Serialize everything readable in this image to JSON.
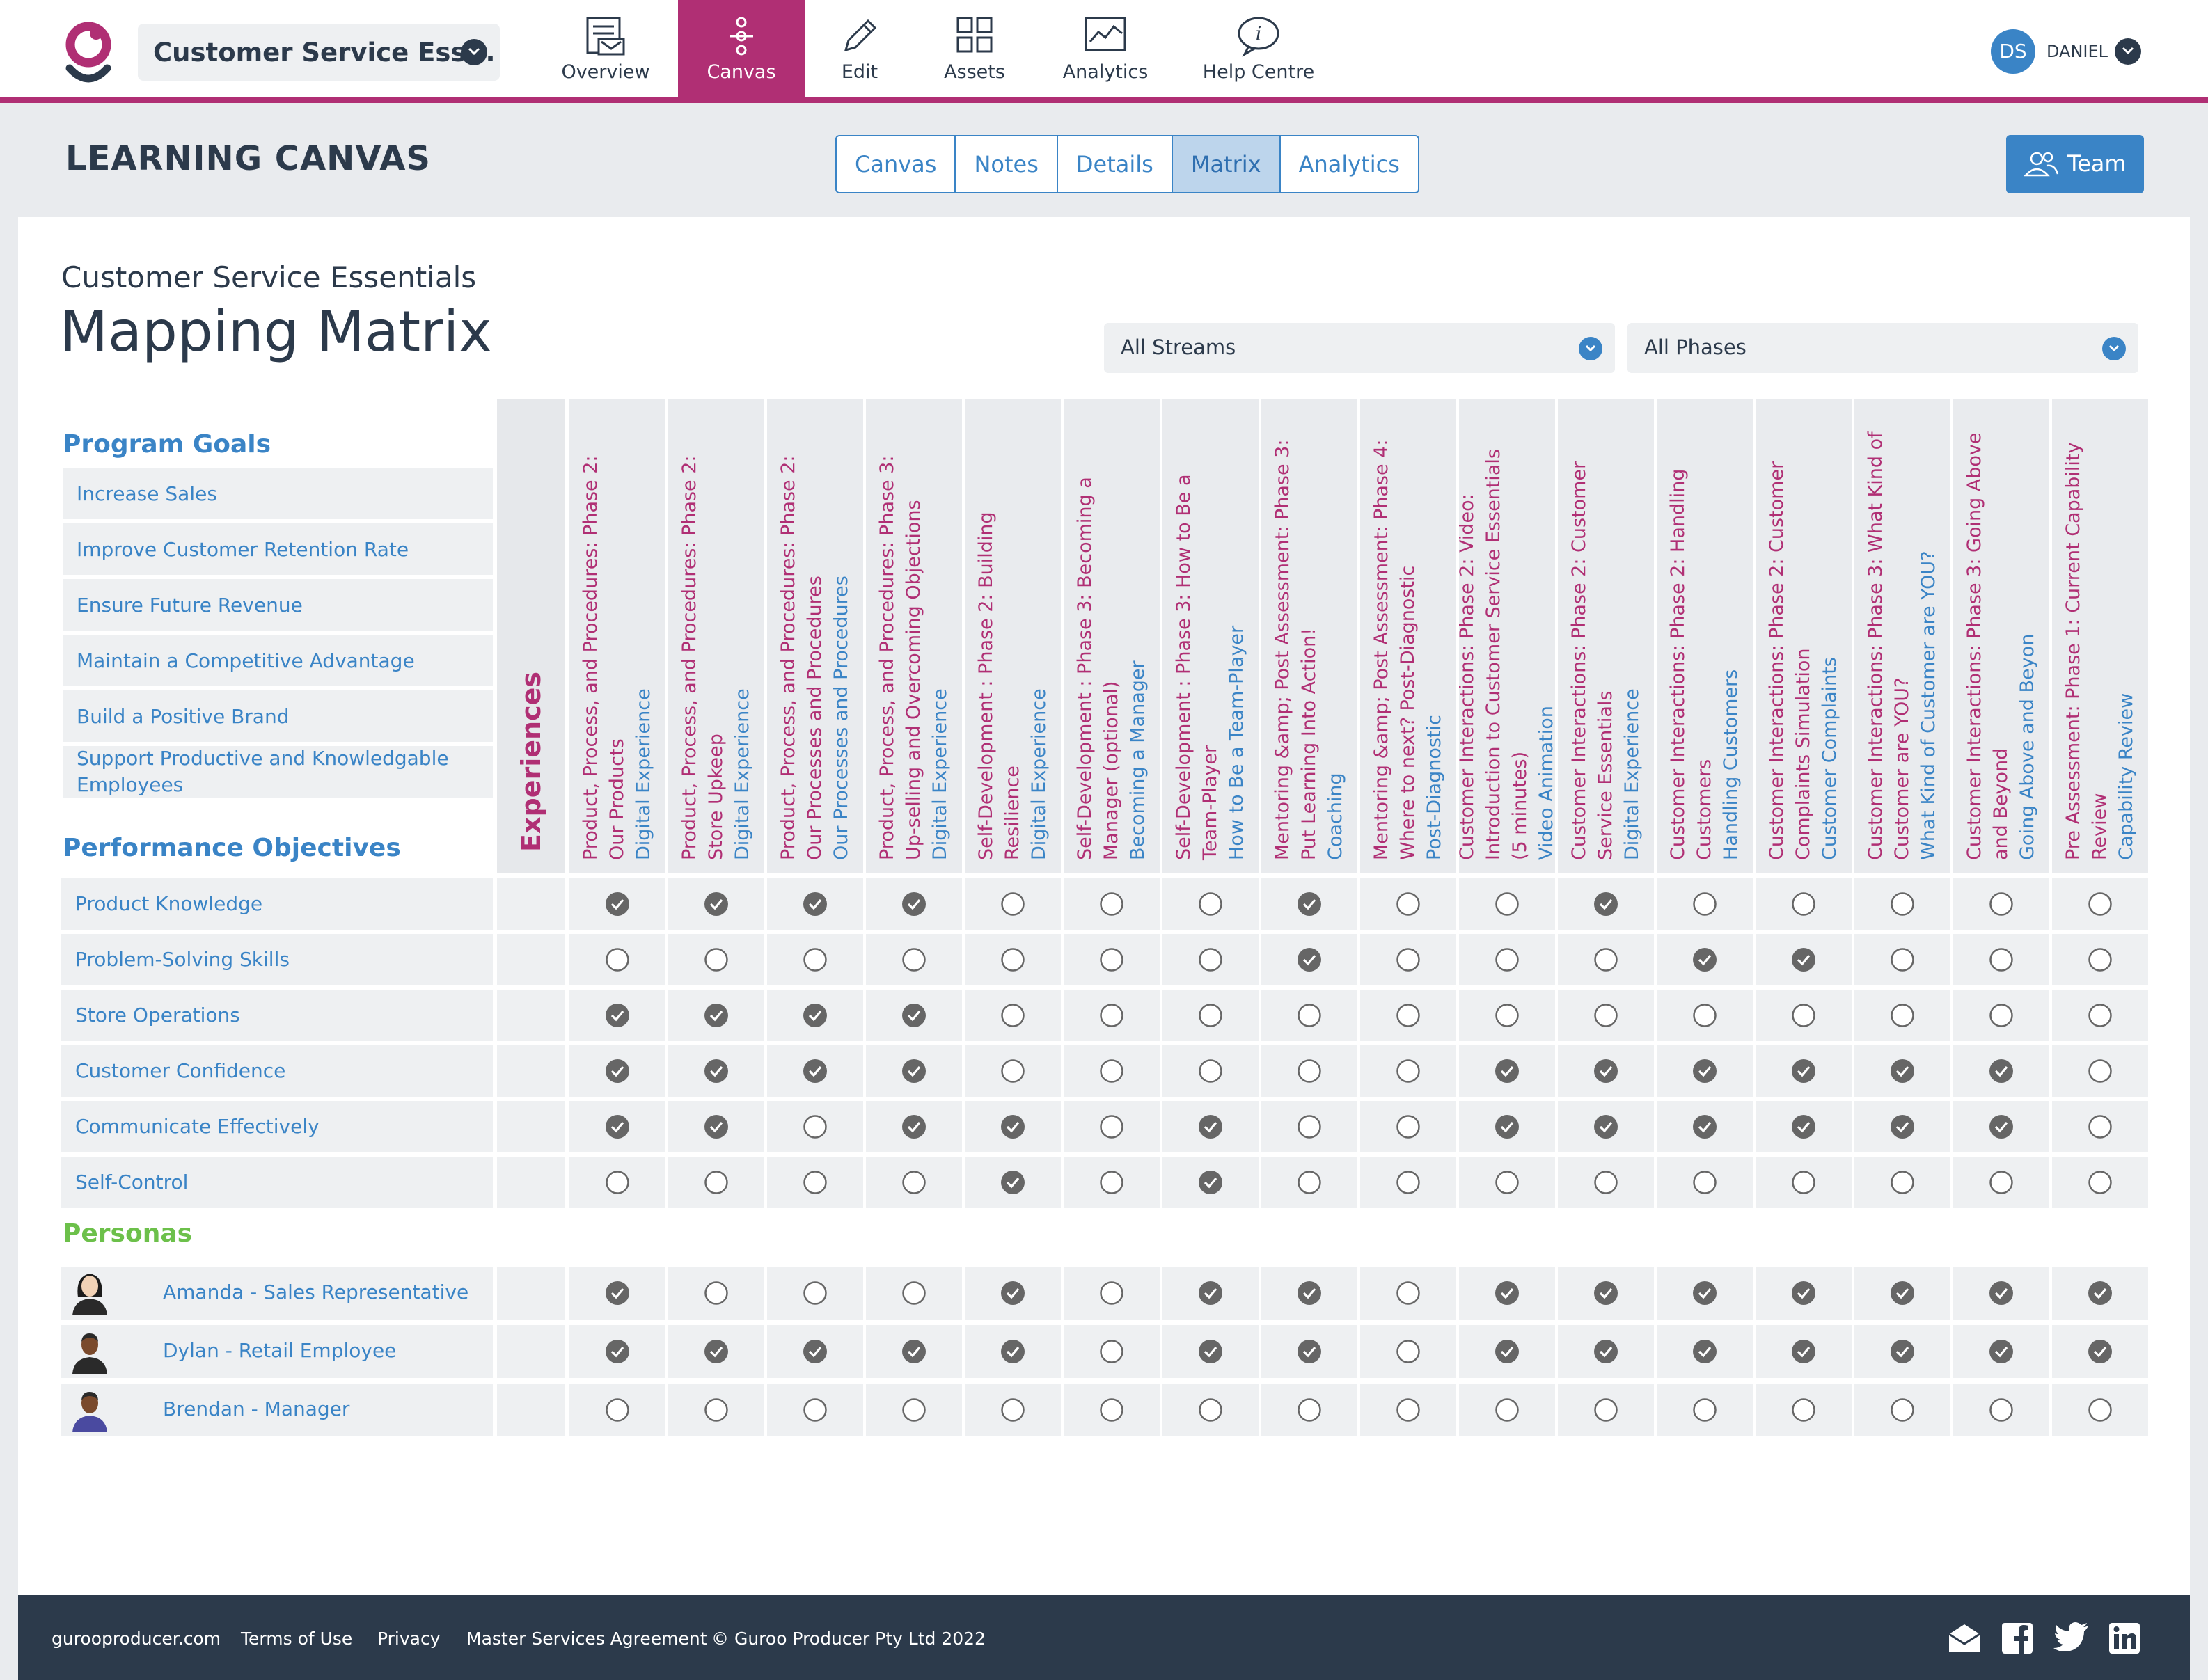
{
  "topnav": {
    "project_name": "Customer Service Ess...",
    "items": [
      {
        "label": "Overview",
        "icon": "overview-icon"
      },
      {
        "label": "Canvas",
        "icon": "canvas-icon",
        "active": true
      },
      {
        "label": "Edit",
        "icon": "pencil-icon"
      },
      {
        "label": "Assets",
        "icon": "assets-icon"
      },
      {
        "label": "Analytics",
        "icon": "analytics-icon"
      },
      {
        "label": "Help Centre",
        "icon": "help-icon"
      }
    ],
    "user_initials": "DS",
    "user_name": "DANIEL"
  },
  "subheader": {
    "title": "LEARNING CANVAS",
    "tabs": [
      "Canvas",
      "Notes",
      "Details",
      "Matrix",
      "Analytics"
    ],
    "active_tab": "Matrix",
    "team_button": "Team"
  },
  "main": {
    "course_name": "Customer Service Essentials",
    "title": "Mapping Matrix",
    "stream_filter": "All Streams",
    "phase_filter": "All Phases",
    "program_goals_title": "Program Goals",
    "performance_objectives_title": "Performance Objectives",
    "personas_title": "Personas",
    "experiences_label": "Experiences",
    "program_goals": [
      "Increase Sales",
      "Improve Customer Retention Rate",
      "Ensure Future Revenue",
      "Maintain a Competitive Advantage",
      "Build a Positive Brand",
      "Support Productive and Knowledgable Employees"
    ],
    "experiences": [
      {
        "title": "Product, Process, and Procedures: Phase 2: Our Products",
        "type": "Digital Experience"
      },
      {
        "title": "Product, Process, and Procedures: Phase 2: Store Upkeep",
        "type": "Digital Experience"
      },
      {
        "title": "Product, Process, and Procedures: Phase 2: Our Processes and Procedures",
        "type": "Our Processes and Procedures"
      },
      {
        "title": "Product, Process, and Procedures: Phase 3: Up-selling and Overcoming Objections",
        "type": "Digital Experience"
      },
      {
        "title": "Self-Development : Phase 2: Building Resilience",
        "type": "Digital Experience"
      },
      {
        "title": "Self-Development : Phase 3: Becoming a Manager (optional)",
        "type": "Becoming a Manager"
      },
      {
        "title": "Self-Development : Phase 3: How to Be a Team-Player",
        "type": "How to Be a Team-Player"
      },
      {
        "title": "Mentoring &amp; Post Assessment: Phase 3: Put Learning Into Action!",
        "type": "Coaching"
      },
      {
        "title": "Mentoring &amp; Post Assessment: Phase 4: Where to next? Post-Diagnostic",
        "type": "Post-Diagnostic"
      },
      {
        "title": "Customer Interactions: Phase 2: Video: Introduction to Customer Service Essentials (5 minutes)",
        "type": "Video Animation"
      },
      {
        "title": "Customer Interactions: Phase 2: Customer Service Essentials",
        "type": "Digital Experience"
      },
      {
        "title": "Customer Interactions: Phase 2: Handling Customers",
        "type": "Handling Customers"
      },
      {
        "title": "Customer Interactions: Phase 2: Customer Complaints Simulation",
        "type": "Customer Complaints"
      },
      {
        "title": "Customer Interactions: Phase 3: What Kind of Customer are YOU?",
        "type": "What Kind of Customer are YOU?"
      },
      {
        "title": "Customer Interactions: Phase 3: Going Above and Beyond",
        "type": "Going Above and Beyon"
      },
      {
        "title": "Pre Assessment: Phase 1: Current Capability Review",
        "type": "Capability Review"
      }
    ],
    "performance_objectives": [
      {
        "name": "Product Knowledge",
        "checks": [
          1,
          1,
          1,
          1,
          0,
          0,
          0,
          1,
          0,
          0,
          1,
          0,
          0,
          0,
          0,
          0
        ]
      },
      {
        "name": "Problem-Solving Skills",
        "checks": [
          0,
          0,
          0,
          0,
          0,
          0,
          0,
          1,
          0,
          0,
          0,
          1,
          1,
          0,
          0,
          0
        ]
      },
      {
        "name": "Store Operations",
        "checks": [
          1,
          1,
          1,
          1,
          0,
          0,
          0,
          0,
          0,
          0,
          0,
          0,
          0,
          0,
          0,
          0
        ]
      },
      {
        "name": "Customer Confidence",
        "checks": [
          1,
          1,
          1,
          1,
          0,
          0,
          0,
          0,
          0,
          1,
          1,
          1,
          1,
          1,
          1,
          0
        ]
      },
      {
        "name": "Communicate Effectively",
        "checks": [
          1,
          1,
          0,
          1,
          1,
          0,
          1,
          0,
          0,
          1,
          1,
          1,
          1,
          1,
          1,
          0
        ]
      },
      {
        "name": "Self-Control",
        "checks": [
          0,
          0,
          0,
          0,
          1,
          0,
          1,
          0,
          0,
          0,
          0,
          0,
          0,
          0,
          0,
          0
        ]
      }
    ],
    "personas": [
      {
        "name": "Amanda - Sales Representative",
        "avatar": "female-avatar-icon",
        "checks": [
          1,
          0,
          0,
          0,
          1,
          0,
          1,
          1,
          0,
          1,
          1,
          1,
          1,
          1,
          1,
          1
        ]
      },
      {
        "name": "Dylan - Retail Employee",
        "avatar": "male-avatar-icon",
        "checks": [
          1,
          1,
          1,
          1,
          1,
          0,
          1,
          1,
          0,
          1,
          1,
          1,
          1,
          1,
          1,
          1
        ]
      },
      {
        "name": "Brendan - Manager",
        "avatar": "manager-avatar-icon",
        "checks": [
          0,
          0,
          0,
          0,
          0,
          0,
          0,
          0,
          0,
          0,
          0,
          0,
          0,
          0,
          0,
          0
        ]
      }
    ]
  },
  "footer": {
    "links": [
      "gurooproducer.com",
      "Terms of Use",
      "Privacy",
      "Master Services Agreement",
      "© Guroo Producer Pty Ltd 2022"
    ],
    "social": [
      "email-icon",
      "facebook-icon",
      "twitter-icon",
      "linkedin-icon"
    ]
  },
  "colors": {
    "brand_magenta": "#b02f74",
    "accent_blue": "#3a84c6",
    "dark_navy": "#2c3a4b",
    "persona_green": "#6cc04a",
    "check_gray": "#666666"
  }
}
